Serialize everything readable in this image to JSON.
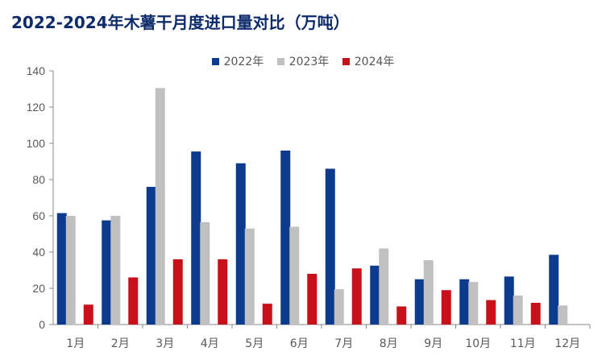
{
  "chart_data": {
    "type": "bar",
    "title": "2022-2024年木薯干月度进口量对比（万吨）",
    "categories": [
      "1月",
      "2月",
      "3月",
      "4月",
      "5月",
      "6月",
      "7月",
      "8月",
      "9月",
      "10月",
      "11月",
      "12月"
    ],
    "series": [
      {
        "name": "2022年",
        "color": "#0c3a8c",
        "values": [
          61.5,
          57.5,
          76,
          95.5,
          89,
          96,
          86,
          32.5,
          25,
          25,
          26.5,
          38.5
        ]
      },
      {
        "name": "2023年",
        "color": "#c0c0c0",
        "values": [
          60,
          60,
          130.5,
          56.5,
          53,
          54,
          19.5,
          42,
          35.5,
          23.5,
          16,
          10.5
        ]
      },
      {
        "name": "2024年",
        "color": "#c8101a",
        "values": [
          11,
          26,
          36,
          36,
          11.5,
          28,
          31,
          10,
          19,
          13.5,
          12,
          null
        ]
      }
    ],
    "ylim": [
      0,
      140
    ],
    "yticks": [
      "0",
      "20",
      "40",
      "60",
      "80",
      "100",
      "120",
      "140"
    ],
    "grid": false,
    "legend_position": "top"
  }
}
